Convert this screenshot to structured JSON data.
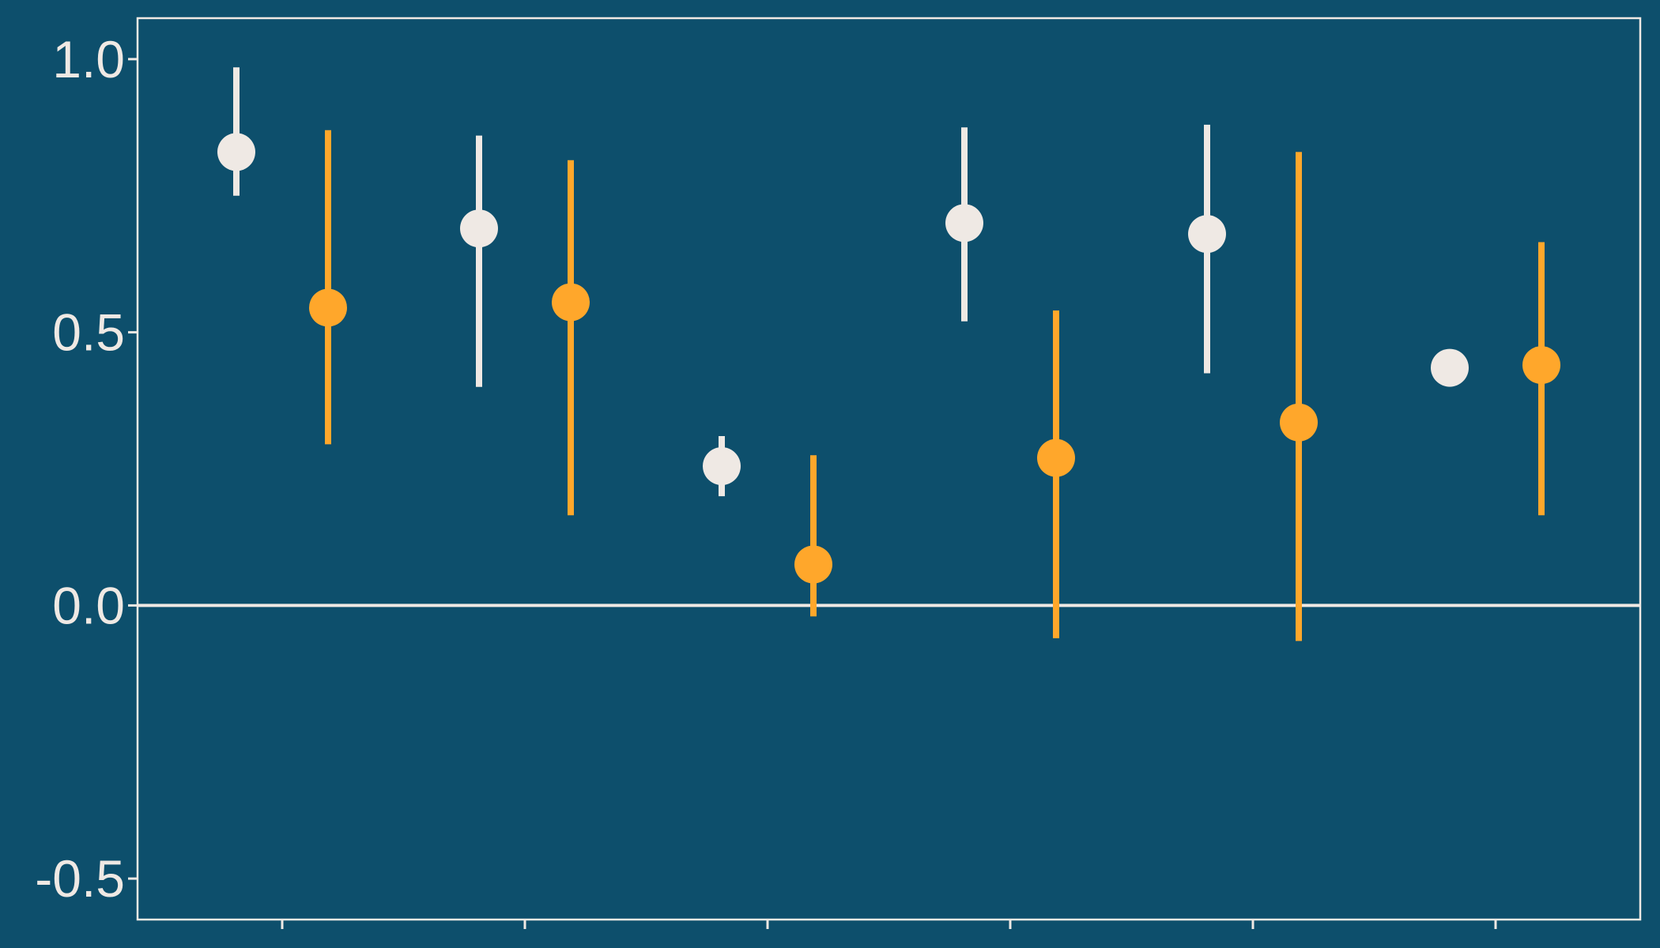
{
  "chart_data": {
    "type": "scatter",
    "title": "",
    "xlabel": "",
    "ylabel": "",
    "ylim": [
      -0.575,
      1.075
    ],
    "y_ticks": [
      "1.0",
      "0.5",
      "0.0",
      "-0.5"
    ],
    "y_tick_values": [
      1.0,
      0.5,
      0.0,
      -0.5
    ],
    "x_tick_count": 6,
    "reference_line_y": 0.0,
    "grid": false,
    "legend": "none",
    "series": [
      {
        "color": "#efe9e4",
        "points": [
          {
            "group": 1,
            "y": 0.83,
            "lower": 0.75,
            "upper": 0.985
          },
          {
            "group": 2,
            "y": 0.69,
            "lower": 0.4,
            "upper": 0.86
          },
          {
            "group": 3,
            "y": 0.255,
            "lower": 0.2,
            "upper": 0.31
          },
          {
            "group": 4,
            "y": 0.7,
            "lower": 0.52,
            "upper": 0.875
          },
          {
            "group": 5,
            "y": 0.68,
            "lower": 0.425,
            "upper": 0.88
          },
          {
            "group": 6,
            "y": 0.435,
            "lower": 0.405,
            "upper": 0.445
          }
        ]
      },
      {
        "color": "#ffa72b",
        "points": [
          {
            "group": 1,
            "y": 0.545,
            "lower": 0.295,
            "upper": 0.87
          },
          {
            "group": 2,
            "y": 0.555,
            "lower": 0.165,
            "upper": 0.815
          },
          {
            "group": 3,
            "y": 0.075,
            "lower": -0.02,
            "upper": 0.275
          },
          {
            "group": 4,
            "y": 0.27,
            "lower": -0.06,
            "upper": 0.54
          },
          {
            "group": 5,
            "y": 0.335,
            "lower": -0.065,
            "upper": 0.83
          },
          {
            "group": 6,
            "y": 0.44,
            "lower": 0.165,
            "upper": 0.665
          }
        ]
      }
    ]
  }
}
